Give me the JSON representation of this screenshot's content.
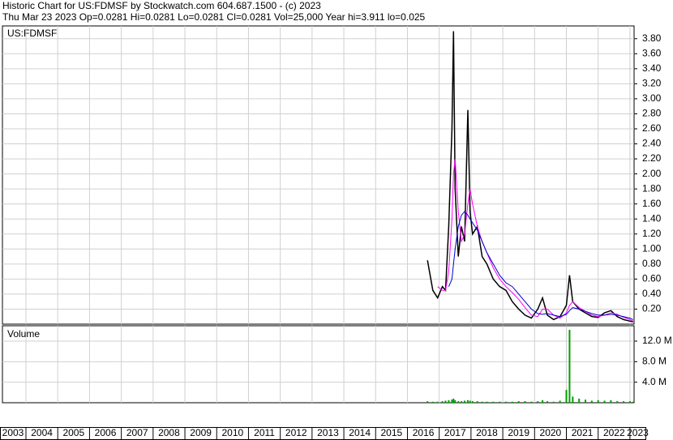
{
  "header": {
    "line1": "Historic Chart for US:FDMSF by Stockwatch.com 604.687.1500 - (c) 2023",
    "line2": "Thu Mar 23 2023   Op=0.0281   Hi=0.0281   Lo=0.0281   Cl=0.0281   Vol=25,000   Year hi=3.911   lo=0.025"
  },
  "chart_data": [
    {
      "type": "line",
      "title": "US:FDMSF",
      "x": [
        2016.63,
        2016.8,
        2016.95,
        2017.1,
        2017.2,
        2017.3,
        2017.4,
        2017.45,
        2017.5,
        2017.6,
        2017.7,
        2017.8,
        2017.9,
        2017.97,
        2018.05,
        2018.2,
        2018.35,
        2018.5,
        2018.7,
        2018.9,
        2019.1,
        2019.3,
        2019.5,
        2019.7,
        2019.9,
        2020.1,
        2020.25,
        2020.4,
        2020.6,
        2020.8,
        2021.0,
        2021.1,
        2021.2,
        2021.4,
        2021.6,
        2021.8,
        2022.0,
        2022.2,
        2022.4,
        2022.6,
        2022.8,
        2023.0,
        2023.1
      ],
      "series": [
        {
          "color": "#000000",
          "values": [
            0.85,
            0.45,
            0.35,
            0.5,
            0.45,
            1.3,
            2.6,
            3.9,
            1.8,
            0.9,
            1.3,
            1.1,
            2.85,
            1.5,
            1.2,
            1.3,
            0.9,
            0.8,
            0.6,
            0.5,
            0.45,
            0.3,
            0.2,
            0.12,
            0.08,
            0.2,
            0.35,
            0.12,
            0.06,
            0.1,
            0.25,
            0.65,
            0.3,
            0.2,
            0.15,
            0.1,
            0.09,
            0.15,
            0.18,
            0.1,
            0.06,
            0.04,
            0.03
          ]
        },
        {
          "color": "#ff00ff",
          "values": [
            null,
            null,
            0.5,
            0.45,
            0.45,
            0.7,
            1.4,
            2.0,
            2.2,
            1.5,
            1.1,
            1.2,
            1.6,
            1.8,
            1.6,
            1.3,
            1.1,
            0.95,
            0.75,
            0.6,
            0.5,
            0.42,
            0.33,
            0.22,
            0.12,
            0.1,
            0.2,
            0.2,
            0.12,
            0.08,
            0.15,
            0.25,
            0.3,
            0.22,
            0.17,
            0.12,
            0.1,
            0.12,
            0.15,
            0.13,
            0.09,
            0.06,
            0.04
          ]
        },
        {
          "color": "#0000cc",
          "values": [
            null,
            null,
            null,
            null,
            null,
            0.5,
            0.6,
            0.8,
            1.0,
            1.3,
            1.45,
            1.5,
            1.45,
            1.4,
            1.35,
            1.25,
            1.1,
            0.95,
            0.8,
            0.65,
            0.55,
            0.5,
            0.4,
            0.3,
            0.2,
            0.14,
            0.13,
            0.14,
            0.12,
            0.1,
            0.13,
            0.18,
            0.22,
            0.2,
            0.17,
            0.14,
            0.12,
            0.12,
            0.13,
            0.12,
            0.1,
            0.08,
            0.06
          ]
        }
      ],
      "xlim": [
        2003.26,
        2023.13
      ],
      "xticks": [
        2003,
        2004,
        2005,
        2006,
        2007,
        2008,
        2009,
        2010,
        2011,
        2012,
        2013,
        2014,
        2015,
        2016,
        2017,
        2018,
        2019,
        2020,
        2021,
        2022,
        2023
      ],
      "ylim": [
        0,
        3.97
      ],
      "yticks": [
        {
          "value": 0.2,
          "label": "0.20"
        },
        {
          "value": 0.4,
          "label": "0.40"
        },
        {
          "value": 0.6,
          "label": "0.60"
        },
        {
          "value": 0.8,
          "label": "0.80"
        },
        {
          "value": 1.0,
          "label": "1.00"
        },
        {
          "value": 1.2,
          "label": "1.20"
        },
        {
          "value": 1.4,
          "label": "1.40"
        },
        {
          "value": 1.6,
          "label": "1.60"
        },
        {
          "value": 1.8,
          "label": "1.80"
        },
        {
          "value": 2.0,
          "label": "2.00"
        },
        {
          "value": 2.2,
          "label": "2.20"
        },
        {
          "value": 2.4,
          "label": "2.40"
        },
        {
          "value": 2.6,
          "label": "2.60"
        },
        {
          "value": 2.8,
          "label": "2.80"
        },
        {
          "value": 3.0,
          "label": "3.00"
        },
        {
          "value": 3.2,
          "label": "3.20"
        },
        {
          "value": 3.4,
          "label": "3.40"
        },
        {
          "value": 3.6,
          "label": "3.60"
        },
        {
          "value": 3.8,
          "label": "3.80"
        }
      ],
      "grid": true
    },
    {
      "type": "bar",
      "title": "Volume",
      "x": [
        2016.63,
        2016.8,
        2016.95,
        2017.1,
        2017.2,
        2017.3,
        2017.4,
        2017.45,
        2017.5,
        2017.6,
        2017.7,
        2017.8,
        2017.9,
        2017.97,
        2018.05,
        2018.2,
        2018.35,
        2018.5,
        2018.7,
        2018.9,
        2019.1,
        2019.3,
        2019.5,
        2019.7,
        2019.9,
        2020.1,
        2020.25,
        2020.4,
        2020.6,
        2020.8,
        2021.0,
        2021.1,
        2021.2,
        2021.4,
        2021.6,
        2021.8,
        2022.0,
        2022.2,
        2022.4,
        2022.6,
        2022.8,
        2023.0,
        2023.1
      ],
      "values": [
        0.3,
        0.2,
        0.2,
        0.3,
        0.4,
        0.5,
        0.6,
        0.8,
        0.5,
        0.3,
        0.3,
        0.4,
        0.5,
        0.4,
        0.3,
        0.3,
        0.2,
        0.2,
        0.2,
        0.2,
        0.2,
        0.2,
        0.3,
        0.3,
        0.2,
        0.3,
        0.5,
        0.3,
        0.2,
        0.4,
        2.5,
        14.2,
        1.2,
        0.8,
        0.6,
        0.4,
        0.5,
        0.4,
        0.5,
        0.3,
        0.3,
        0.3,
        0.2
      ],
      "color": "#00a000",
      "xlim": [
        2003.26,
        2023.13
      ],
      "ylim": [
        0,
        15
      ],
      "yticks": [
        {
          "value": 4,
          "label": "4.0 M"
        },
        {
          "value": 8,
          "label": "8.0 M"
        },
        {
          "value": 12,
          "label": "12.0 M"
        }
      ],
      "grid": true
    }
  ]
}
